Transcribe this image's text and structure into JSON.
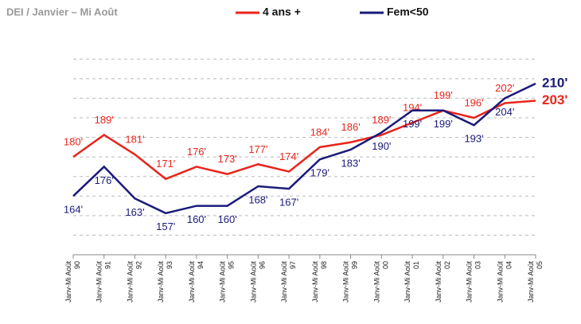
{
  "chart_data": {
    "type": "line",
    "title": "DEI / Janvier – Mi Août",
    "categories": [
      "Janv-Mi Août 90",
      "Janv-Mi Août 91",
      "Janv-Mi Août 92",
      "Janv-Mi Août 93",
      "Janv-Mi Août 94",
      "Janv-Mi Août 95",
      "Janv-Mi Août 96",
      "Janv-Mi Août 97",
      "Janv-Mi Août 98",
      "Janv-Mi Août 99",
      "Janv-Mi Août 00",
      "Janv-Mi Août 01",
      "Janv-Mi Août 02",
      "Janv-Mi Août 03",
      "Janv-Mi Août 04",
      "Janv-Mi Août 05"
    ],
    "series": [
      {
        "name": "4 ans +",
        "color": "#e8251c",
        "values": [
          180,
          189,
          181,
          171,
          176,
          173,
          177,
          174,
          184,
          186,
          189,
          194,
          199,
          196,
          202,
          203
        ],
        "value_labels": [
          "180'",
          "189'",
          "181'",
          "171'",
          "176'",
          "173'",
          "177'",
          "174'",
          "184'",
          "186'",
          "189'",
          "194'",
          "199'",
          "196'",
          "202'",
          "203'"
        ]
      },
      {
        "name": "Fem<50",
        "color": "#1a1a7a",
        "values": [
          164,
          176,
          163,
          157,
          160,
          160,
          168,
          167,
          179,
          183,
          190,
          199,
          199,
          193,
          204,
          210
        ],
        "value_labels": [
          "164'",
          "176'",
          "163'",
          "157'",
          "160'",
          "160'",
          "168'",
          "167'",
          "179'",
          "183'",
          "190'",
          "199'",
          "199'",
          "193'",
          "204'",
          "210'"
        ]
      }
    ],
    "ylim": [
      140,
      224
    ],
    "yticks": [
      148,
      156,
      164,
      172,
      180,
      188,
      196,
      204,
      212,
      220
    ],
    "grid": true
  }
}
